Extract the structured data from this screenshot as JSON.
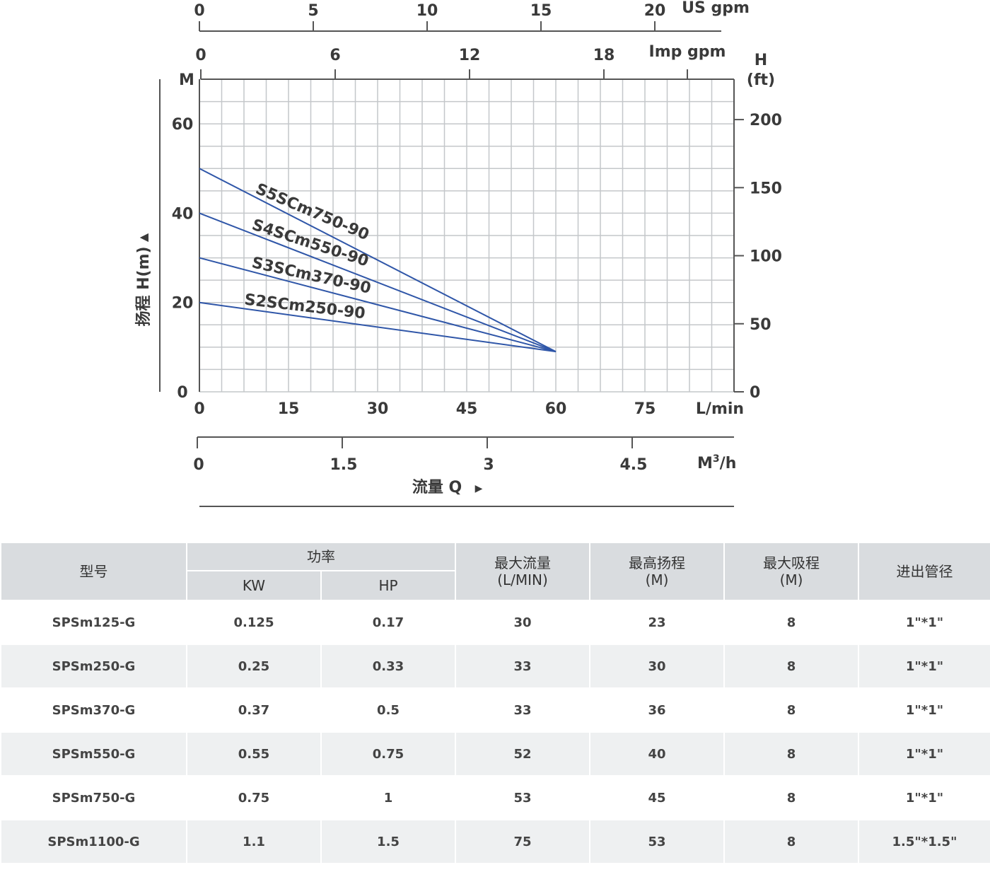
{
  "chart_data": {
    "type": "line",
    "axes": {
      "top_us_gpm": {
        "ticks": [
          "0",
          "5",
          "10",
          "15",
          "20"
        ],
        "unit": "US gpm"
      },
      "top_imp_gpm": {
        "ticks": [
          "0",
          "6",
          "12",
          "18"
        ],
        "unit": "Imp gpm"
      },
      "left": {
        "unit": "M",
        "ticks": [
          "0",
          "20",
          "40",
          "60"
        ],
        "label": "扬程 H(m)",
        "arrow": "▲",
        "ylim": [
          0,
          70
        ]
      },
      "right": {
        "unit_line1": "H",
        "unit_line2": "(ft)",
        "ticks": [
          "0",
          "50",
          "100",
          "150",
          "200"
        ]
      },
      "bottom_lmin": {
        "ticks": [
          "0",
          "15",
          "30",
          "45",
          "60",
          "75"
        ],
        "unit": "L/min",
        "xlim": [
          0,
          90
        ]
      },
      "bottom_m3h": {
        "ticks": [
          "0",
          "1.5",
          "3",
          "4.5"
        ],
        "unit_base": "M",
        "unit_sup": "3",
        "unit_tail": "/h",
        "label": "流量 Q",
        "arrow": "▶"
      }
    },
    "grid": true,
    "line_color": "#2f56a8",
    "series": [
      {
        "name": "S5SCm750-90",
        "x": [
          0,
          60
        ],
        "y": [
          50,
          9
        ]
      },
      {
        "name": "S4SCm550-90",
        "x": [
          0,
          60
        ],
        "y": [
          40,
          9
        ]
      },
      {
        "name": "S3SCm370-90",
        "x": [
          0,
          60
        ],
        "y": [
          30,
          9
        ]
      },
      {
        "name": "S2SCm250-90",
        "x": [
          0,
          60
        ],
        "y": [
          20,
          9
        ]
      }
    ]
  },
  "table": {
    "headers": {
      "model": "型号",
      "power": "功率",
      "kw": "KW",
      "hp": "HP",
      "max_flow": "最大流量",
      "max_flow_unit": "(L/MIN)",
      "max_head": "最高扬程",
      "max_head_unit": "(M)",
      "max_suction": "最大吸程",
      "max_suction_unit": "(M)",
      "pipe": "进出管径"
    },
    "rows": [
      {
        "model": "SPSm125-G",
        "kw": "0.125",
        "hp": "0.17",
        "flow": "30",
        "head": "23",
        "suction": "8",
        "pipe": "1\"*1\""
      },
      {
        "model": "SPSm250-G",
        "kw": "0.25",
        "hp": "0.33",
        "flow": "33",
        "head": "30",
        "suction": "8",
        "pipe": "1\"*1\""
      },
      {
        "model": "SPSm370-G",
        "kw": "0.37",
        "hp": "0.5",
        "flow": "33",
        "head": "36",
        "suction": "8",
        "pipe": "1\"*1\""
      },
      {
        "model": "SPSm550-G",
        "kw": "0.55",
        "hp": "0.75",
        "flow": "52",
        "head": "40",
        "suction": "8",
        "pipe": "1\"*1\""
      },
      {
        "model": "SPSm750-G",
        "kw": "0.75",
        "hp": "1",
        "flow": "53",
        "head": "45",
        "suction": "8",
        "pipe": "1\"*1\""
      },
      {
        "model": "SPSm1100-G",
        "kw": "1.1",
        "hp": "1.5",
        "flow": "75",
        "head": "53",
        "suction": "8",
        "pipe": "1.5\"*1.5\""
      }
    ]
  }
}
